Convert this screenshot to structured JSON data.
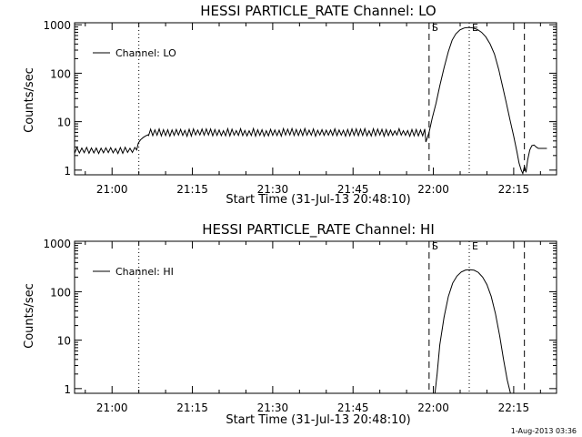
{
  "footer_timestamp": "1-Aug-2013 03:36",
  "chart_data": [
    {
      "type": "line",
      "title": "HESSI PARTICLE_RATE Channel: LO",
      "xlabel": "Start Time (31-Jul-13 20:48:10)",
      "ylabel": "Counts/sec",
      "x_unit": "minutes of day (UT)",
      "xlim": [
        1253,
        1343
      ],
      "ylim": [
        0.8,
        1100
      ],
      "yscale": "log",
      "xticks": [
        {
          "value": 1260,
          "label": "21:00"
        },
        {
          "value": 1275,
          "label": "21:15"
        },
        {
          "value": 1290,
          "label": "21:30"
        },
        {
          "value": 1305,
          "label": "21:45"
        },
        {
          "value": 1320,
          "label": "22:00"
        },
        {
          "value": 1335,
          "label": "22:15"
        }
      ],
      "yticks": [
        {
          "value": 1,
          "label": "1"
        },
        {
          "value": 10,
          "label": "10"
        },
        {
          "value": 100,
          "label": "100"
        },
        {
          "value": 1000,
          "label": "1000"
        }
      ],
      "legend": {
        "label": "Channel: LO",
        "position": "top-left"
      },
      "markers": [
        {
          "x": 1319.2,
          "label": "S",
          "style": "dashed"
        },
        {
          "x": 1326.7,
          "label": "E",
          "style": "dotted"
        },
        {
          "x": 1337.0,
          "label": "",
          "style": "dashed"
        },
        {
          "x": 1343.2,
          "label": "",
          "style": "dotted"
        },
        {
          "x": 1265.0,
          "label": "",
          "style": "dotted"
        }
      ],
      "series": [
        {
          "name": "Channel: LO",
          "segments": [
            {
              "kind": "noise",
              "x_start": 1253,
              "x_end": 1264.6,
              "low": 2.2,
              "high": 3.0,
              "step": 0.45
            },
            {
              "kind": "points",
              "x": [
                1264.6,
                1264.9,
                1265.3,
                1265.8,
                1266.3,
                1266.8
              ],
              "y": [
                2.6,
                3.6,
                4.2,
                4.7,
                5.1,
                5.4
              ]
            },
            {
              "kind": "noise",
              "x_start": 1266.8,
              "x_end": 1318.6,
              "low": 5.0,
              "high": 7.2,
              "step": 0.4
            },
            {
              "kind": "points",
              "x": [
                1318.6,
                1319.2,
                1319.8,
                1320.5,
                1321.2,
                1322.0,
                1322.8,
                1323.5,
                1324.2,
                1325.0,
                1325.8,
                1326.6,
                1327.4,
                1328.2,
                1329.0,
                1329.8,
                1330.6,
                1331.4,
                1332.2,
                1332.9,
                1333.6,
                1334.3,
                1335.0,
                1335.6,
                1336.0,
                1336.4,
                1336.7,
                1337.0,
                1337.3,
                1337.6,
                1338.0,
                1338.4,
                1338.8,
                1339.2,
                1339.6,
                1340.4,
                1341.2
              ],
              "y": [
                3.8,
                6.0,
                12,
                24,
                55,
                130,
                280,
                480,
                650,
                790,
                860,
                880,
                860,
                800,
                700,
                560,
                400,
                250,
                120,
                55,
                25,
                11,
                5,
                2.4,
                1.4,
                1.0,
                0.85,
                1.2,
                0.9,
                1.6,
                2.6,
                3.2,
                3.3,
                3.0,
                2.8,
                2.8,
                2.8
              ]
            }
          ]
        }
      ]
    },
    {
      "type": "line",
      "title": "HESSI PARTICLE_RATE Channel: HI",
      "xlabel": "Start Time (31-Jul-13 20:48:10)",
      "ylabel": "Counts/sec",
      "x_unit": "minutes of day (UT)",
      "xlim": [
        1253,
        1343
      ],
      "ylim": [
        0.8,
        1100
      ],
      "yscale": "log",
      "xticks": [
        {
          "value": 1260,
          "label": "21:00"
        },
        {
          "value": 1275,
          "label": "21:15"
        },
        {
          "value": 1290,
          "label": "21:30"
        },
        {
          "value": 1305,
          "label": "21:45"
        },
        {
          "value": 1320,
          "label": "22:00"
        },
        {
          "value": 1335,
          "label": "22:15"
        }
      ],
      "yticks": [
        {
          "value": 1,
          "label": "1"
        },
        {
          "value": 10,
          "label": "10"
        },
        {
          "value": 100,
          "label": "100"
        },
        {
          "value": 1000,
          "label": "1000"
        }
      ],
      "legend": {
        "label": "Channel: HI",
        "position": "top-left"
      },
      "markers": [
        {
          "x": 1319.2,
          "label": "S",
          "style": "dashed"
        },
        {
          "x": 1326.7,
          "label": "E",
          "style": "dotted"
        },
        {
          "x": 1337.0,
          "label": "",
          "style": "dashed"
        },
        {
          "x": 1343.2,
          "label": "",
          "style": "dotted"
        },
        {
          "x": 1265.0,
          "label": "",
          "style": "dotted"
        }
      ],
      "series": [
        {
          "name": "Channel: HI",
          "segments": [
            {
              "kind": "points",
              "x": [
                1320.3,
                1320.7,
                1321.2,
                1322.0,
                1322.8,
                1323.6,
                1324.4,
                1325.2,
                1326.0,
                1326.8,
                1327.6,
                1328.4,
                1329.2,
                1330.0,
                1330.8,
                1331.6,
                1332.4,
                1333.1,
                1333.8,
                1334.4
              ],
              "y": [
                0.8,
                2.0,
                8,
                30,
                80,
                150,
                210,
                255,
                280,
                285,
                278,
                250,
                200,
                140,
                80,
                35,
                12,
                4,
                1.5,
                0.8
              ]
            }
          ]
        }
      ]
    }
  ]
}
